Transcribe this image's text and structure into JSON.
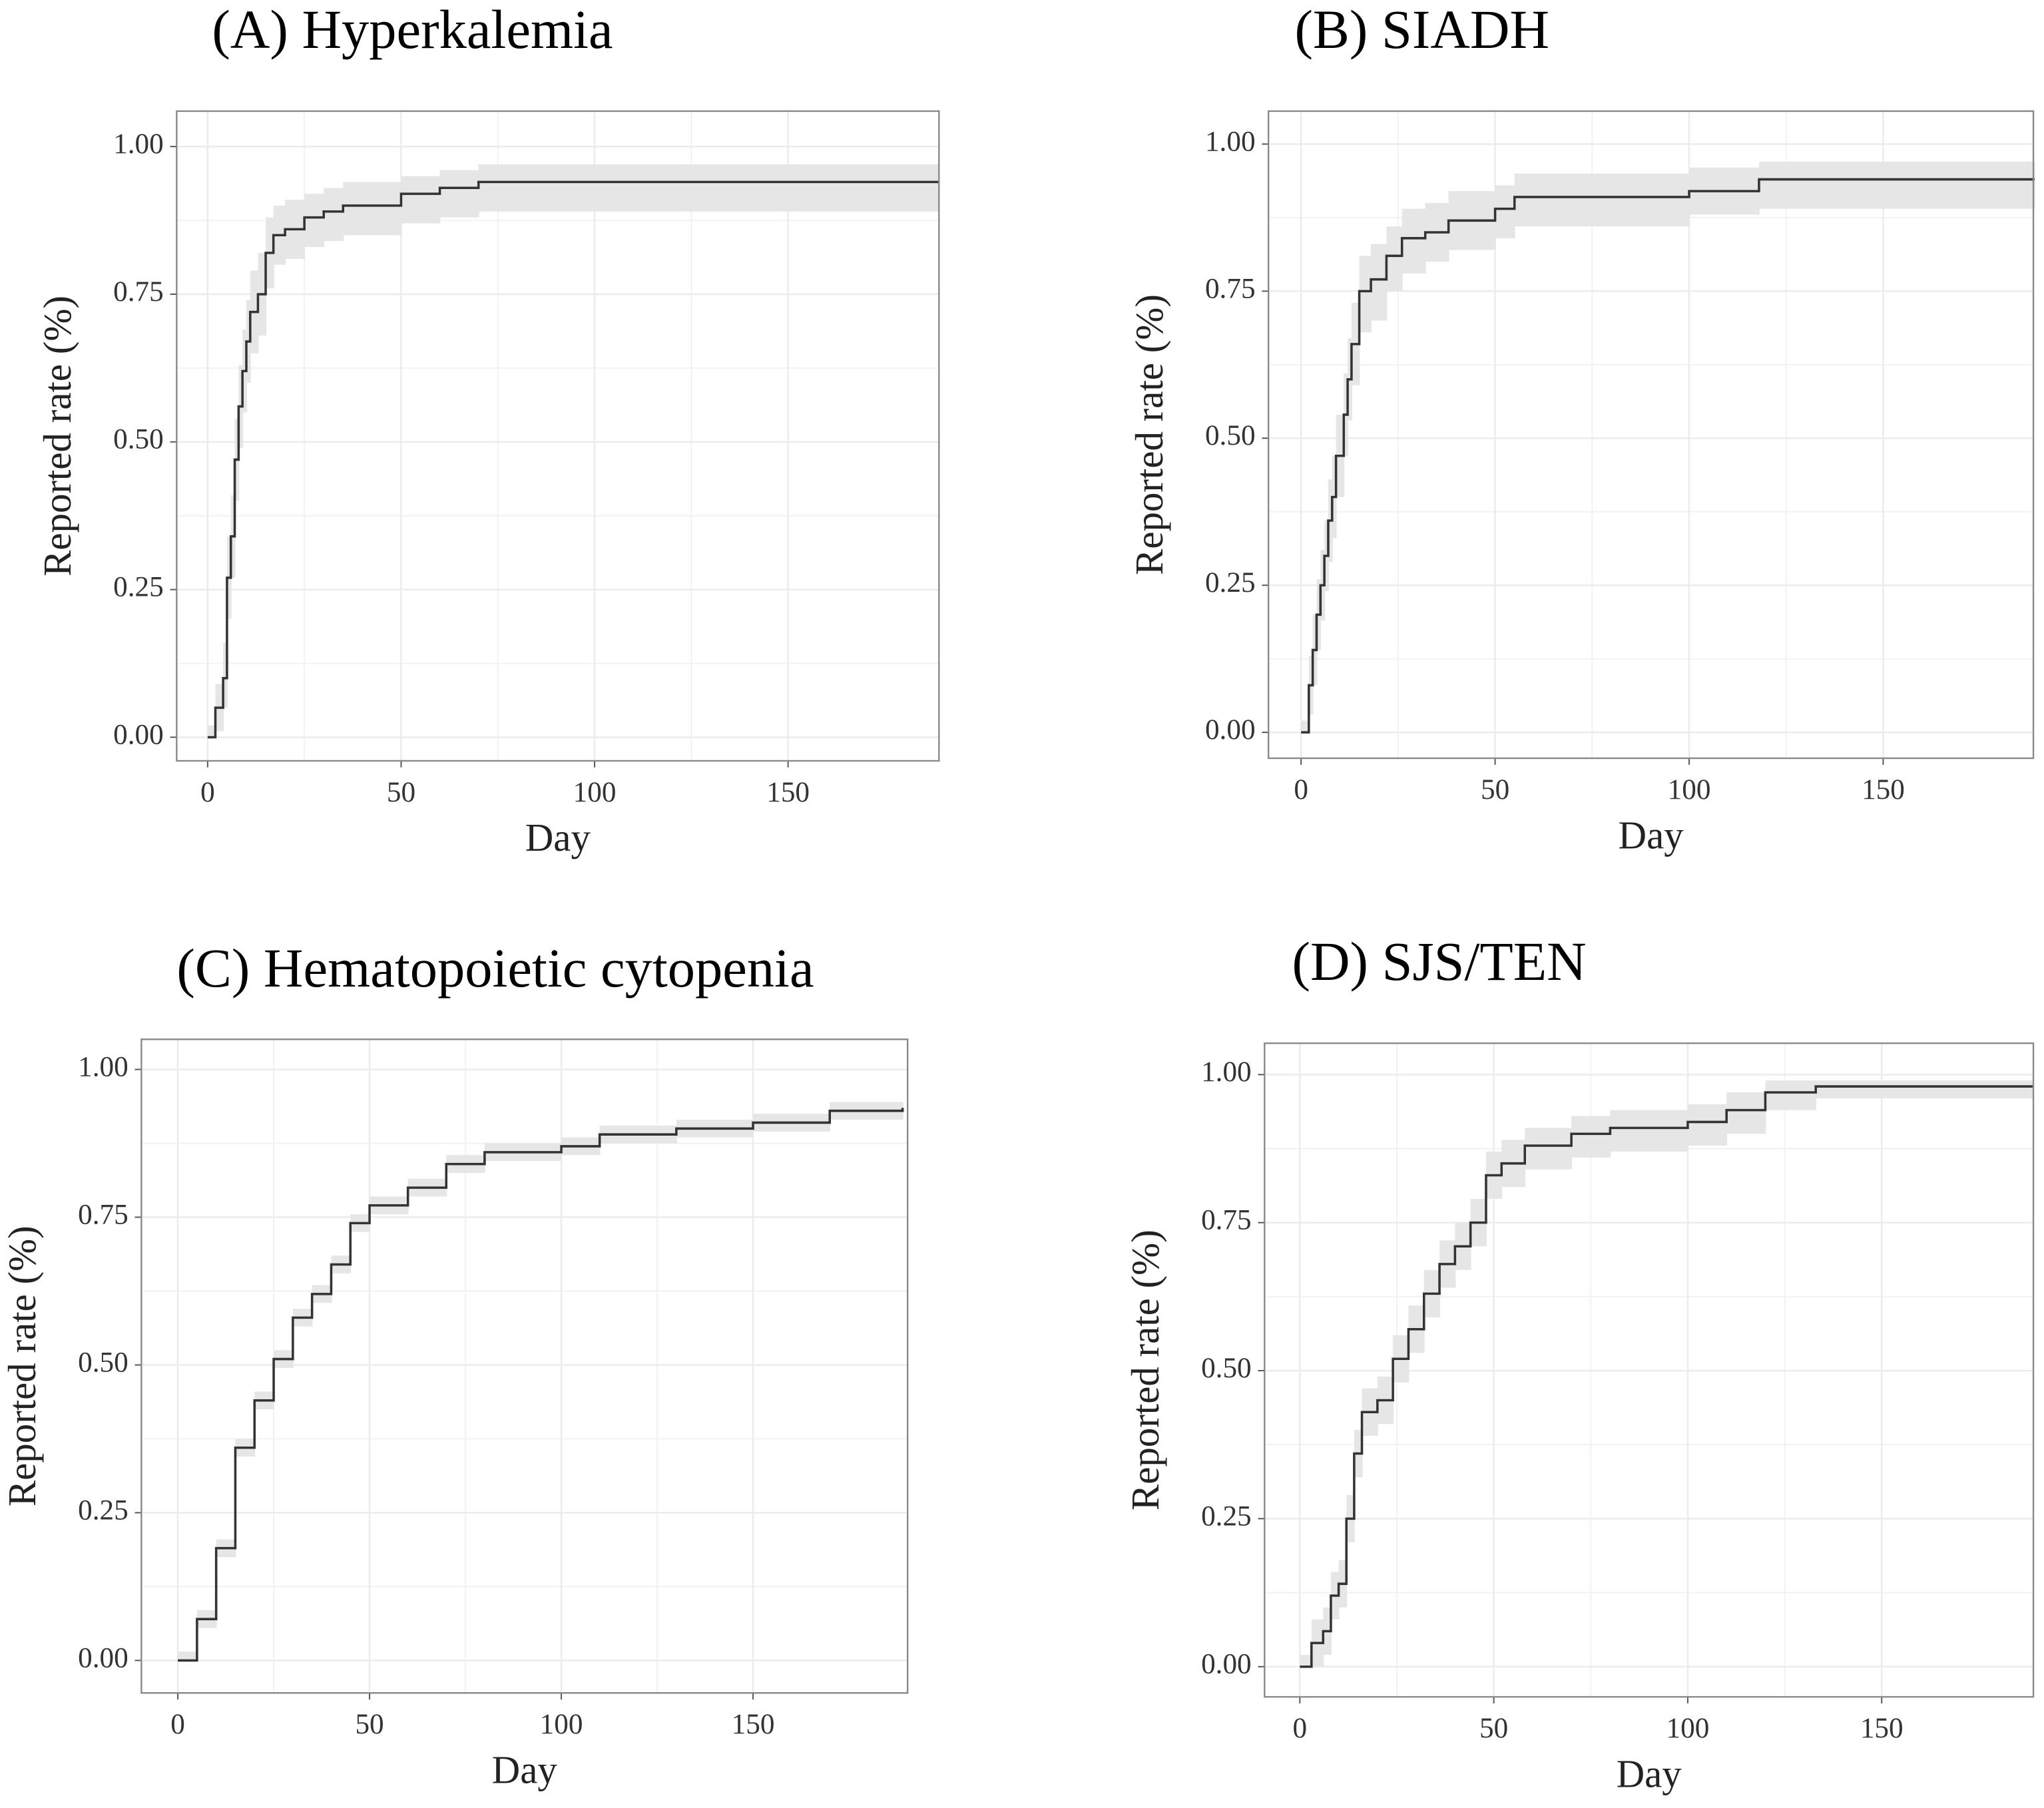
{
  "chart_data": [
    {
      "type": "line",
      "step": true,
      "title": "(A) Hyperkalemia",
      "x_label": "Day",
      "y_label": "Reported rate (%)",
      "x": [
        0,
        2,
        4,
        5,
        6,
        7,
        8,
        9,
        10,
        11,
        13,
        15,
        17,
        20,
        25,
        30,
        35,
        50,
        60,
        70,
        189
      ],
      "values": [
        0,
        0.05,
        0.1,
        0.27,
        0.34,
        0.47,
        0.56,
        0.62,
        0.67,
        0.72,
        0.75,
        0.82,
        0.85,
        0.86,
        0.88,
        0.89,
        0.9,
        0.92,
        0.93,
        0.94,
        0.94
      ],
      "lower": [
        0,
        0.01,
        0.05,
        0.2,
        0.27,
        0.4,
        0.49,
        0.55,
        0.6,
        0.65,
        0.68,
        0.76,
        0.8,
        0.81,
        0.83,
        0.84,
        0.85,
        0.87,
        0.88,
        0.89,
        0.89
      ],
      "upper": [
        0.02,
        0.09,
        0.16,
        0.34,
        0.41,
        0.54,
        0.63,
        0.69,
        0.74,
        0.79,
        0.82,
        0.88,
        0.9,
        0.91,
        0.92,
        0.93,
        0.94,
        0.95,
        0.96,
        0.97,
        0.97
      ],
      "color": "#333333",
      "band_color": "#e6e6e6",
      "xlim": [
        -8,
        189
      ],
      "ylim": [
        -0.04,
        1.06
      ],
      "xticks": [
        0,
        50,
        100,
        150
      ],
      "yticks": [
        {
          "value": 0,
          "label": "0.00"
        },
        {
          "value": 0.25,
          "label": "0.25"
        },
        {
          "value": 0.5,
          "label": "0.50"
        },
        {
          "value": 0.75,
          "label": "0.75"
        },
        {
          "value": 1,
          "label": "1.00"
        }
      ],
      "grid": true
    },
    {
      "type": "line",
      "step": true,
      "title": "(B) SIADH",
      "x_label": "Day",
      "y_label": "Reported rate (%)",
      "x": [
        0,
        2,
        3,
        4,
        5,
        6,
        7,
        8,
        9,
        11,
        12,
        13,
        15,
        18,
        22,
        26,
        32,
        38,
        50,
        55,
        100,
        118,
        189
      ],
      "values": [
        0,
        0.08,
        0.14,
        0.2,
        0.25,
        0.3,
        0.36,
        0.4,
        0.47,
        0.54,
        0.6,
        0.66,
        0.75,
        0.77,
        0.81,
        0.84,
        0.85,
        0.87,
        0.89,
        0.91,
        0.92,
        0.94,
        0.94
      ],
      "lower": [
        0,
        0.03,
        0.08,
        0.14,
        0.19,
        0.24,
        0.29,
        0.33,
        0.4,
        0.47,
        0.53,
        0.59,
        0.68,
        0.7,
        0.75,
        0.78,
        0.8,
        0.82,
        0.84,
        0.86,
        0.88,
        0.89,
        0.89
      ],
      "upper": [
        0.02,
        0.13,
        0.2,
        0.26,
        0.31,
        0.36,
        0.43,
        0.47,
        0.54,
        0.61,
        0.67,
        0.73,
        0.81,
        0.83,
        0.86,
        0.89,
        0.9,
        0.92,
        0.93,
        0.95,
        0.96,
        0.97,
        0.97
      ],
      "color": "#333333",
      "band_color": "#e6e6e6",
      "xlim": [
        -8.4,
        188.7
      ],
      "ylim": [
        -0.044,
        1.056
      ],
      "xticks": [
        0,
        50,
        100,
        150
      ],
      "yticks": [
        {
          "value": 0,
          "label": "0.00"
        },
        {
          "value": 0.25,
          "label": "0.25"
        },
        {
          "value": 0.5,
          "label": "0.50"
        },
        {
          "value": 0.75,
          "label": "0.75"
        },
        {
          "value": 1,
          "label": "1.00"
        }
      ],
      "grid": true
    },
    {
      "type": "line",
      "step": true,
      "title": "(C) Hematopoietic cytopenia",
      "x_label": "Day",
      "y_label": "Reported rate (%)",
      "x": [
        0,
        5,
        10,
        15,
        20,
        25,
        30,
        35,
        40,
        45,
        50,
        60,
        70,
        80,
        100,
        110,
        130,
        150,
        170,
        189
      ],
      "values": [
        0,
        0.07,
        0.19,
        0.36,
        0.44,
        0.51,
        0.58,
        0.62,
        0.67,
        0.74,
        0.77,
        0.8,
        0.84,
        0.86,
        0.87,
        0.89,
        0.9,
        0.91,
        0.93,
        0.935
      ],
      "lower": [
        0,
        0.055,
        0.175,
        0.345,
        0.425,
        0.495,
        0.565,
        0.605,
        0.655,
        0.725,
        0.755,
        0.785,
        0.825,
        0.845,
        0.855,
        0.875,
        0.885,
        0.895,
        0.915,
        0.92
      ],
      "upper": [
        0.015,
        0.085,
        0.205,
        0.375,
        0.455,
        0.525,
        0.595,
        0.635,
        0.685,
        0.755,
        0.785,
        0.815,
        0.855,
        0.875,
        0.885,
        0.905,
        0.915,
        0.925,
        0.945,
        0.95
      ],
      "color": "#333333",
      "band_color": "#e6e6e6",
      "xlim": [
        -9.5,
        190.3
      ],
      "ylim": [
        -0.055,
        1.051
      ],
      "xticks": [
        0,
        50,
        100,
        150
      ],
      "yticks": [
        {
          "value": 0,
          "label": "0.00"
        },
        {
          "value": 0.25,
          "label": "0.25"
        },
        {
          "value": 0.5,
          "label": "0.50"
        },
        {
          "value": 0.75,
          "label": "0.75"
        },
        {
          "value": 1,
          "label": "1.00"
        }
      ],
      "grid": true
    },
    {
      "type": "line",
      "step": true,
      "title": "(D) SJS/TEN",
      "x_label": "Day",
      "y_label": "Reported rate (%)",
      "x": [
        0,
        3,
        6,
        8,
        10,
        12,
        14,
        16,
        20,
        24,
        28,
        32,
        36,
        40,
        44,
        48,
        52,
        58,
        70,
        80,
        100,
        110,
        120,
        133,
        189
      ],
      "values": [
        0,
        0.04,
        0.06,
        0.12,
        0.14,
        0.25,
        0.36,
        0.43,
        0.45,
        0.52,
        0.57,
        0.63,
        0.68,
        0.71,
        0.75,
        0.83,
        0.85,
        0.88,
        0.9,
        0.91,
        0.92,
        0.94,
        0.97,
        0.98,
        0.98
      ],
      "lower": [
        0,
        0,
        0.02,
        0.08,
        0.1,
        0.21,
        0.32,
        0.39,
        0.41,
        0.48,
        0.53,
        0.59,
        0.64,
        0.67,
        0.71,
        0.79,
        0.81,
        0.84,
        0.86,
        0.87,
        0.88,
        0.9,
        0.94,
        0.96,
        0.96
      ],
      "upper": [
        0.02,
        0.08,
        0.1,
        0.16,
        0.18,
        0.29,
        0.4,
        0.47,
        0.49,
        0.56,
        0.61,
        0.67,
        0.72,
        0.75,
        0.79,
        0.87,
        0.89,
        0.91,
        0.93,
        0.94,
        0.95,
        0.97,
        0.99,
        0.99,
        0.99
      ],
      "color": "#333333",
      "band_color": "#e6e6e6",
      "xlim": [
        -9.1,
        189.1
      ],
      "ylim": [
        -0.051,
        1.053
      ],
      "xticks": [
        0,
        50,
        100,
        150
      ],
      "yticks": [
        {
          "value": 0,
          "label": "0.00"
        },
        {
          "value": 0.25,
          "label": "0.25"
        },
        {
          "value": 0.5,
          "label": "0.50"
        },
        {
          "value": 0.75,
          "label": "0.75"
        },
        {
          "value": 1,
          "label": "1.00"
        }
      ],
      "grid": true
    }
  ]
}
